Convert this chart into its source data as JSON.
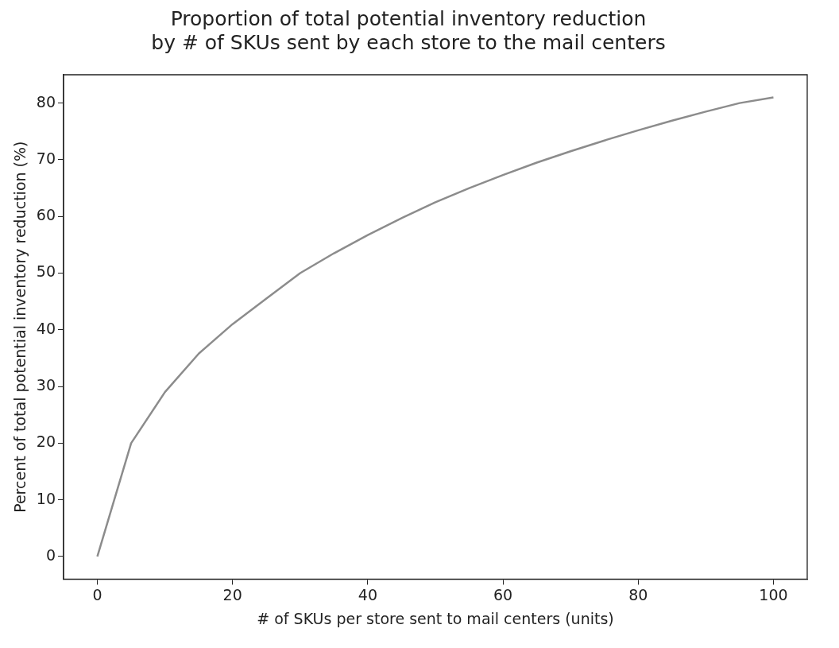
{
  "chart_data": {
    "type": "line",
    "title": [
      "Proportion of total potential inventory reduction",
      "by # of SKUs sent by each store to the mail centers"
    ],
    "xlabel": "# of SKUs per store sent to mail centers (units)",
    "ylabel": "Percent of total potential inventory reduction (%)",
    "x": [
      0,
      5,
      10,
      15,
      20,
      25,
      30,
      35,
      40,
      45,
      50,
      55,
      60,
      65,
      70,
      75,
      80,
      85,
      90,
      95,
      100
    ],
    "series": [
      {
        "color": "#8c8c8c",
        "values": [
          0,
          20,
          29,
          35.8,
          41,
          45.5,
          50,
          53.5,
          56.7,
          59.7,
          62.5,
          65,
          67.3,
          69.5,
          71.5,
          73.4,
          75.2,
          76.9,
          78.5,
          80,
          81
        ]
      }
    ],
    "xlim": [
      -5,
      105
    ],
    "xticks": [
      0,
      20,
      40,
      60,
      80,
      100
    ],
    "ylim": [
      -4,
      85
    ],
    "yticks": [
      0,
      10,
      20,
      30,
      40,
      50,
      60,
      70,
      80
    ],
    "grid": false,
    "legend": false,
    "marker": "none",
    "line_style": "solid"
  }
}
